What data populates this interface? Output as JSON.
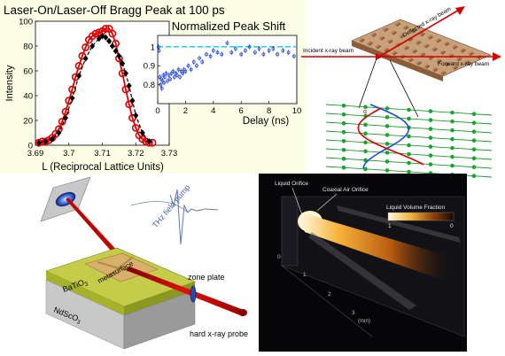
{
  "chart_main": {
    "type": "line",
    "title": "Laser-On/Laser-Off Bragg Peak at 100 ps",
    "xlabel": "L (Reciprocal Lattice Units)",
    "ylabel": "Intensity",
    "xlim": [
      3.69,
      3.73
    ],
    "ylim": [
      0,
      100
    ],
    "x_ticks": [
      "3.69",
      "3.7",
      "3.71",
      "3.72",
      "3.73"
    ],
    "y_ticks": [
      "0",
      "20",
      "40",
      "60",
      "80",
      "100"
    ],
    "series": [
      {
        "color": "#e00000",
        "marker": "circle",
        "x": [
          3.691,
          3.692,
          3.693,
          3.694,
          3.695,
          3.696,
          3.697,
          3.698,
          3.699,
          3.7,
          3.701,
          3.702,
          3.703,
          3.704,
          3.705,
          3.706,
          3.707,
          3.708,
          3.709,
          3.71,
          3.711,
          3.712,
          3.713,
          3.714,
          3.715,
          3.716,
          3.717,
          3.718,
          3.719,
          3.72,
          3.721,
          3.722,
          3.723,
          3.724,
          3.725
        ],
        "y": [
          2,
          3,
          3,
          4,
          6,
          9,
          13,
          19,
          27,
          36,
          45,
          55,
          64,
          72,
          79,
          85,
          88,
          90,
          91,
          92,
          94,
          94,
          90,
          82,
          70,
          58,
          45,
          33,
          22,
          14,
          8,
          5,
          3,
          2,
          2
        ]
      },
      {
        "color": "#000000",
        "marker": "diamond",
        "x": [
          3.691,
          3.693,
          3.695,
          3.697,
          3.699,
          3.701,
          3.703,
          3.705,
          3.707,
          3.709,
          3.71,
          3.711,
          3.712,
          3.713,
          3.714,
          3.715,
          3.716,
          3.717,
          3.718,
          3.719,
          3.72,
          3.722,
          3.724
        ],
        "y": [
          2,
          3,
          5,
          10,
          22,
          38,
          56,
          70,
          80,
          86,
          88,
          87,
          84,
          80,
          76,
          72,
          66,
          58,
          48,
          36,
          24,
          10,
          3
        ]
      }
    ]
  },
  "chart_inset": {
    "type": "scatter",
    "title": "Normalized Peak Shift",
    "xlabel": "Delay (ns)",
    "xlim": [
      0,
      10
    ],
    "ylim": [
      0.7,
      1.06
    ],
    "x_ticks": [
      "0",
      "2",
      "4",
      "6",
      "8",
      "10"
    ],
    "y_ticks": [
      "0.8",
      "0.9",
      "1"
    ],
    "reference_line": 1.0,
    "points": {
      "x": [
        0.05,
        0.1,
        0.15,
        0.2,
        0.25,
        0.3,
        0.35,
        0.4,
        0.45,
        0.5,
        0.6,
        0.7,
        0.8,
        0.9,
        1.0,
        1.1,
        1.2,
        1.3,
        1.4,
        1.5,
        1.6,
        1.7,
        1.8,
        1.9,
        2.0,
        2.2,
        2.4,
        2.6,
        2.8,
        3.0,
        3.2,
        3.5,
        3.8,
        4.0,
        4.3,
        4.6,
        5.0,
        5.3,
        5.6,
        6.0,
        6.3,
        6.6,
        7.0,
        7.3,
        7.6,
        8.0,
        8.3,
        8.6,
        9.0,
        9.4,
        9.8
      ],
      "y": [
        1.0,
        0.98,
        0.84,
        0.8,
        0.83,
        0.78,
        0.82,
        0.85,
        0.81,
        0.84,
        0.86,
        0.82,
        0.85,
        0.83,
        0.86,
        0.87,
        0.84,
        0.86,
        0.85,
        0.88,
        0.84,
        0.87,
        0.86,
        0.88,
        0.87,
        0.9,
        0.88,
        0.92,
        0.9,
        0.94,
        0.92,
        0.96,
        0.95,
        0.98,
        0.97,
        0.96,
        1.02,
        0.97,
        0.99,
        0.96,
        0.98,
        1.0,
        0.97,
        0.99,
        0.96,
        0.98,
        0.99,
        0.96,
        0.98,
        0.97,
        0.95
      ]
    }
  },
  "bragg_diagram": {
    "incident_label": "Incident x-ray beam",
    "deflected_label": "Deflected x-ray beam",
    "forward_label": "Forward x-ray beam",
    "alpha_label": "α"
  },
  "thz_diagram": {
    "pump_label": "THz field pump",
    "metasurface_label": "metasurface",
    "film_label": "BaTiO",
    "film_sub": "3",
    "substrate_label": "NdScO",
    "substrate_sub": "3",
    "zone_plate_label": "zone plate",
    "probe_label": "hard x-ray probe"
  },
  "jet_diagram": {
    "liquid_orifice_label": "Liquid Orifice",
    "air_orifice_label": "Coaxial Air Orifice",
    "colorbar_title": "Liquid Volume Fraction",
    "colorbar_max": "1",
    "colorbar_min": "0",
    "axis_ticks": [
      "0",
      "1",
      "2",
      "3"
    ],
    "axis_unit": "(mm)"
  },
  "colors": {
    "panel_bg": "#fbfde4",
    "red_beam": "#d40000",
    "blue_wave": "#1a4fd8",
    "green_wave": "#15a62b",
    "dashed_ref": "#00c8e8",
    "inset_points": "#1a3cd8"
  }
}
